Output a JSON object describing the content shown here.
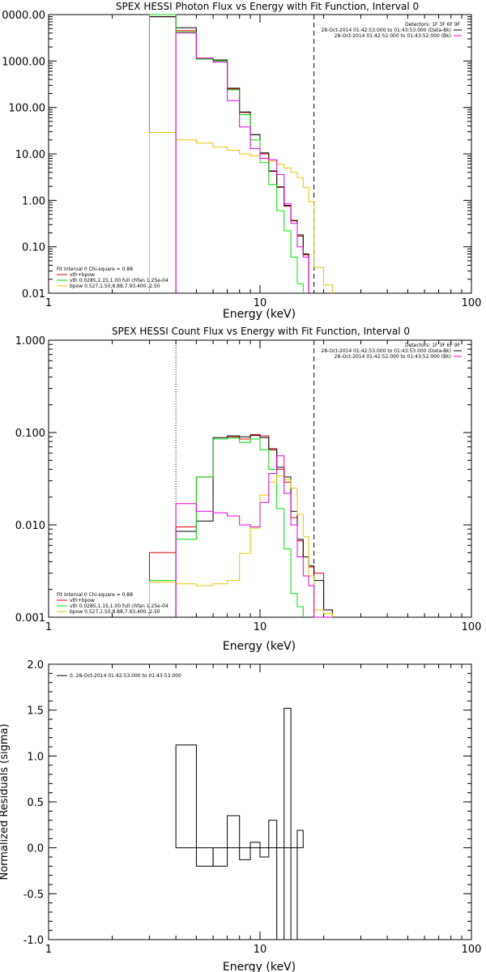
{
  "colors": {
    "data": "#000000",
    "vth": "#00dd00",
    "bpow": "#e8c200",
    "sum": "#dd0000",
    "bk": "#dd00dd",
    "axis": "#000000"
  },
  "chart_data": [
    {
      "type": "line",
      "title": "SPEX HESSI Photon Flux vs Energy with Fit Function, Interval 0",
      "xlabel": "Energy (keV)",
      "ylabel": "",
      "xscale": "log",
      "yscale": "log",
      "xlim": [
        1,
        100
      ],
      "ylim": [
        0.01,
        10000
      ],
      "xticks": [
        "1",
        "10",
        "100"
      ],
      "yticks": [
        "0.01",
        "0.10",
        "1.00",
        "10.00",
        "100.00",
        "1000.00",
        "0000.00"
      ],
      "detectors_label": "Detectors: 1F 3F 6F 9F",
      "time_labels": [
        "28-Oct-2014 01:42:53.000 to 01:43:53.000 (Data-Bk)",
        "28-Oct-2014 01:42:52.000 to 01:43:52.000 (Bk)"
      ],
      "legend": [
        "Fit Interval 0   Chi-square = 0.88",
        "vth+bpow",
        "vth 0.0285,1.15,1.00  full chfan 1.25e-04",
        "bpow 0.527,1.50,8.88,7.93,400.,2.50"
      ],
      "vlines": [
        {
          "x": 4.0,
          "style": "solid",
          "color": "#dd00dd"
        },
        {
          "x": 18.0,
          "style": "dashed",
          "color": "#000000"
        }
      ],
      "energy_edges": [
        3,
        4,
        5,
        6,
        7,
        8,
        9,
        10,
        11,
        12,
        13,
        14,
        15,
        16,
        17,
        18,
        20,
        22
      ],
      "series": [
        {
          "name": "vth+bpow",
          "color": "#dd0000",
          "values": [
            9000,
            4500,
            1150,
            1050,
            250,
            78,
            26,
            10,
            4.2,
            1.9,
            0.75,
            0.36,
            0.17,
            0.067,
            null,
            null,
            null
          ]
        },
        {
          "color": "#000000",
          "values": [
            9000,
            5200,
            1150,
            1050,
            260,
            80,
            26,
            10.5,
            4.3,
            1.95,
            0.78,
            0.37,
            0.18,
            0.07,
            null,
            null,
            null
          ]
        },
        {
          "color": "#00dd00",
          "values": [
            10000,
            4200,
            1100,
            1000,
            240,
            70,
            20,
            6.5,
            2.2,
            0.6,
            0.22,
            0.06,
            0.016,
            null,
            null,
            null,
            null
          ]
        },
        {
          "color": "#e8c200",
          "values": [
            29,
            20,
            17,
            14,
            12,
            10,
            9,
            8,
            7,
            6,
            5,
            4,
            3.1,
            1.9,
            0.95,
            0.036,
            0.015
          ]
        },
        {
          "color": "#dd00dd",
          "values": [
            null,
            4000,
            1150,
            950,
            140,
            38,
            13,
            8,
            7.5,
            3.6,
            0.85,
            0.32,
            0.1,
            0.06,
            null,
            null,
            null
          ]
        }
      ]
    },
    {
      "type": "line",
      "title": "SPEX HESSI Count Flux vs Energy with Fit Function, Interval 0",
      "xlabel": "Energy (keV)",
      "ylabel": "",
      "xscale": "log",
      "yscale": "log",
      "xlim": [
        1,
        100
      ],
      "ylim": [
        0.001,
        1
      ],
      "xticks": [
        "1",
        "10",
        "100"
      ],
      "yticks": [
        "0.001",
        "0.010",
        "0.100",
        "1.000"
      ],
      "detectors_label": "Detectors: 1F 3F 6F 9F",
      "time_labels": [
        "28-Oct-2014 01:42:53.000 to 01:43:53.000 (Data-Bk)",
        "28-Oct-2014 01:42:52.000 to 01:43:52.000 (Bk)"
      ],
      "legend": [
        "Fit Interval 0   Chi-square = 0.88",
        "vth+bpow",
        "vth 0.0285,1.15,1.00  full chfan 1.25e-04",
        "bpow 0.527,1.50,8.88,7.93,400.,2.50"
      ],
      "vlines": [
        {
          "x": 4.0,
          "style": "dotted",
          "color": "#000000"
        },
        {
          "x": 18.0,
          "style": "dashed",
          "color": "#000000"
        }
      ],
      "energy_edges": [
        3,
        4,
        5,
        6,
        7,
        8,
        9,
        10,
        11,
        12,
        13,
        14,
        15,
        16,
        17,
        18,
        20,
        22
      ],
      "series": [
        {
          "name": "vth+bpow",
          "color": "#dd0000",
          "values": [
            0.005,
            0.0095,
            0.033,
            0.085,
            0.09,
            0.085,
            0.095,
            0.092,
            0.067,
            0.04,
            0.029,
            0.012,
            0.0067,
            0.0045,
            0.0035,
            0.003,
            0.0012
          ]
        },
        {
          "color": "#000000",
          "values": [
            null,
            0.0085,
            0.011,
            0.088,
            0.092,
            0.09,
            0.093,
            0.088,
            0.065,
            0.042,
            0.033,
            0.014,
            0.007,
            0.0045,
            0.0036,
            0.0025,
            0.0012
          ]
        },
        {
          "color": "#00dd00",
          "values": [
            0.0025,
            0.007,
            0.033,
            0.085,
            0.087,
            0.078,
            0.085,
            0.065,
            0.04,
            0.015,
            0.0055,
            0.0018,
            0.0013,
            null,
            null,
            null,
            null
          ]
        },
        {
          "color": "#e8c200",
          "values": [
            0.0024,
            0.0023,
            0.0022,
            0.0023,
            0.0025,
            0.0049,
            0.0092,
            0.021,
            0.029,
            0.034,
            0.031,
            0.025,
            0.013,
            0.0075,
            0.0028,
            0.0012,
            0.0011
          ]
        },
        {
          "color": "#dd00dd",
          "values": [
            null,
            0.017,
            0.014,
            0.0135,
            0.0125,
            0.01,
            0.0095,
            0.0175,
            0.036,
            0.056,
            0.022,
            0.01,
            0.0045,
            0.0028,
            0.0022,
            0.001,
            0.001
          ]
        }
      ]
    },
    {
      "type": "line",
      "title": "",
      "xlabel": "Energy (keV)",
      "ylabel": "Normalized Residuals (sigma)",
      "xscale": "log",
      "yscale": "linear",
      "xlim": [
        1,
        100
      ],
      "ylim": [
        -1,
        2
      ],
      "xticks": [
        "1",
        "10",
        "100"
      ],
      "yticks": [
        "-1.0",
        "-0.5",
        "0.0",
        "0.5",
        "1.0",
        "1.5",
        "2.0"
      ],
      "legend": [
        "0, 28-Oct-2014 01:42:53.000 to 01:43:53.000"
      ],
      "energy_edges": [
        4,
        5,
        6,
        7,
        8,
        9,
        10,
        11,
        12,
        13,
        14,
        15,
        16,
        17,
        18
      ],
      "values": [
        1.12,
        -0.2,
        -0.2,
        0.35,
        -0.13,
        0.06,
        -0.1,
        0.3,
        -1.0,
        1.52,
        -1.0,
        0.19,
        null,
        null
      ]
    }
  ]
}
